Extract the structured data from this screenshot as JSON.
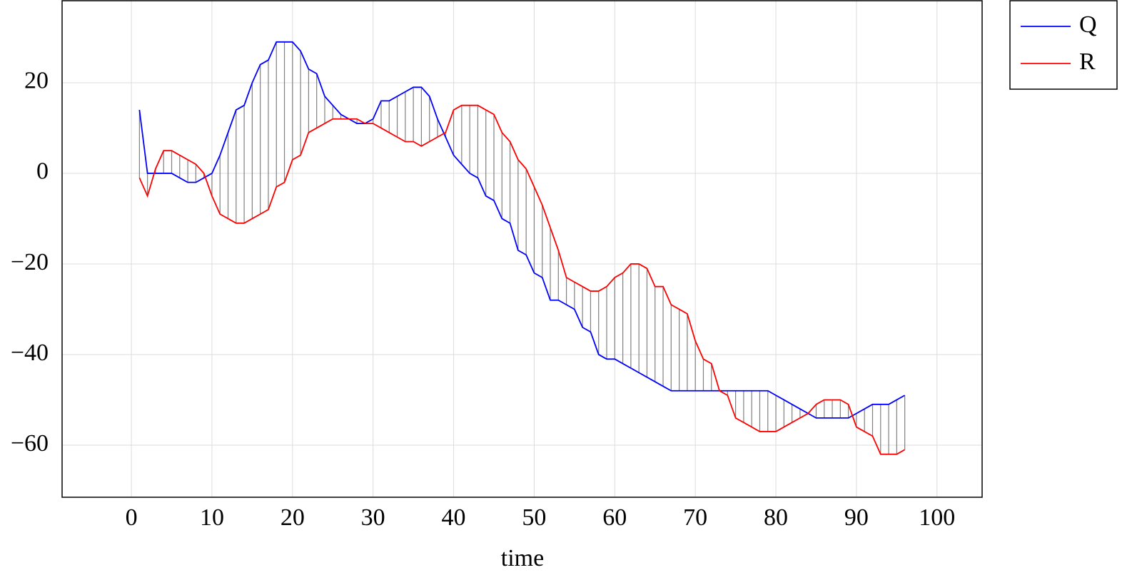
{
  "chart_data": {
    "type": "line",
    "xlabel": "time",
    "x": [
      1,
      2,
      3,
      4,
      5,
      6,
      7,
      8,
      9,
      10,
      11,
      12,
      13,
      14,
      15,
      16,
      17,
      18,
      19,
      20,
      21,
      22,
      23,
      24,
      25,
      26,
      27,
      28,
      29,
      30,
      31,
      32,
      33,
      34,
      35,
      36,
      37,
      38,
      39,
      40,
      41,
      42,
      43,
      44,
      45,
      46,
      47,
      48,
      49,
      50,
      51,
      52,
      53,
      54,
      55,
      56,
      57,
      58,
      59,
      60,
      61,
      62,
      63,
      64,
      65,
      66,
      67,
      68,
      69,
      70,
      71,
      72,
      73,
      74,
      75,
      76,
      77,
      78,
      79,
      80,
      81,
      82,
      83,
      84,
      85,
      86,
      87,
      88,
      89,
      90,
      91,
      92,
      93,
      94,
      95,
      96
    ],
    "series": [
      {
        "name": "Q",
        "color": "#0000ff",
        "values": [
          14,
          0,
          0,
          0,
          0,
          -1,
          -2,
          -2,
          -1,
          0,
          4,
          9,
          14,
          15,
          20,
          24,
          25,
          29,
          29,
          29,
          27,
          23,
          22,
          17,
          15,
          13,
          12,
          11,
          11,
          12,
          16,
          16,
          17,
          18,
          19,
          19,
          17,
          12,
          8,
          4,
          2,
          0,
          -1,
          -5,
          -6,
          -10,
          -11,
          -17,
          -18,
          -22,
          -23,
          -28,
          -28,
          -29,
          -30,
          -34,
          -35,
          -40,
          -41,
          -41,
          -42,
          -43,
          -44,
          -45,
          -46,
          -47,
          -48,
          -48,
          -48,
          -48,
          -48,
          -48,
          -48,
          -48,
          -48,
          -48,
          -48,
          -48,
          -48,
          -49,
          -50,
          -51,
          -52,
          -53,
          -54,
          -54,
          -54,
          -54,
          -54,
          -53,
          -52,
          -51,
          -51,
          -51,
          -50,
          -49
        ]
      },
      {
        "name": "R",
        "color": "#ff0000",
        "values": [
          -1,
          -5,
          1,
          5,
          5,
          4,
          3,
          2,
          0,
          -5,
          -9,
          -10,
          -11,
          -11,
          -10,
          -9,
          -8,
          -3,
          -2,
          3,
          4,
          9,
          10,
          11,
          12,
          12,
          12,
          12,
          11,
          11,
          10,
          9,
          8,
          7,
          7,
          6,
          7,
          8,
          9,
          14,
          15,
          15,
          15,
          14,
          13,
          9,
          7,
          3,
          1,
          -3,
          -7,
          -12,
          -17,
          -23,
          -24,
          -25,
          -26,
          -26,
          -25,
          -23,
          -22,
          -20,
          -20,
          -21,
          -25,
          -25,
          -29,
          -30,
          -31,
          -37,
          -41,
          -42,
          -48,
          -49,
          -54,
          -55,
          -56,
          -57,
          -57,
          -57,
          -56,
          -55,
          -54,
          -53,
          -51,
          -50,
          -50,
          -50,
          -51,
          -56,
          -57,
          -58,
          -62,
          -62,
          -62,
          -61
        ]
      }
    ],
    "fill_between": true,
    "xlim": [
      -8.6,
      105.6
    ],
    "ylim": [
      -71.5,
      38.1
    ],
    "xticks": [
      0,
      10,
      20,
      30,
      40,
      50,
      60,
      70,
      80,
      90,
      100
    ],
    "yticks": [
      {
        "value": -60,
        "label": "−60"
      },
      {
        "value": -40,
        "label": "−40"
      },
      {
        "value": -20,
        "label": "−20"
      },
      0,
      20
    ],
    "grid": true,
    "legend": "outside upper right"
  }
}
